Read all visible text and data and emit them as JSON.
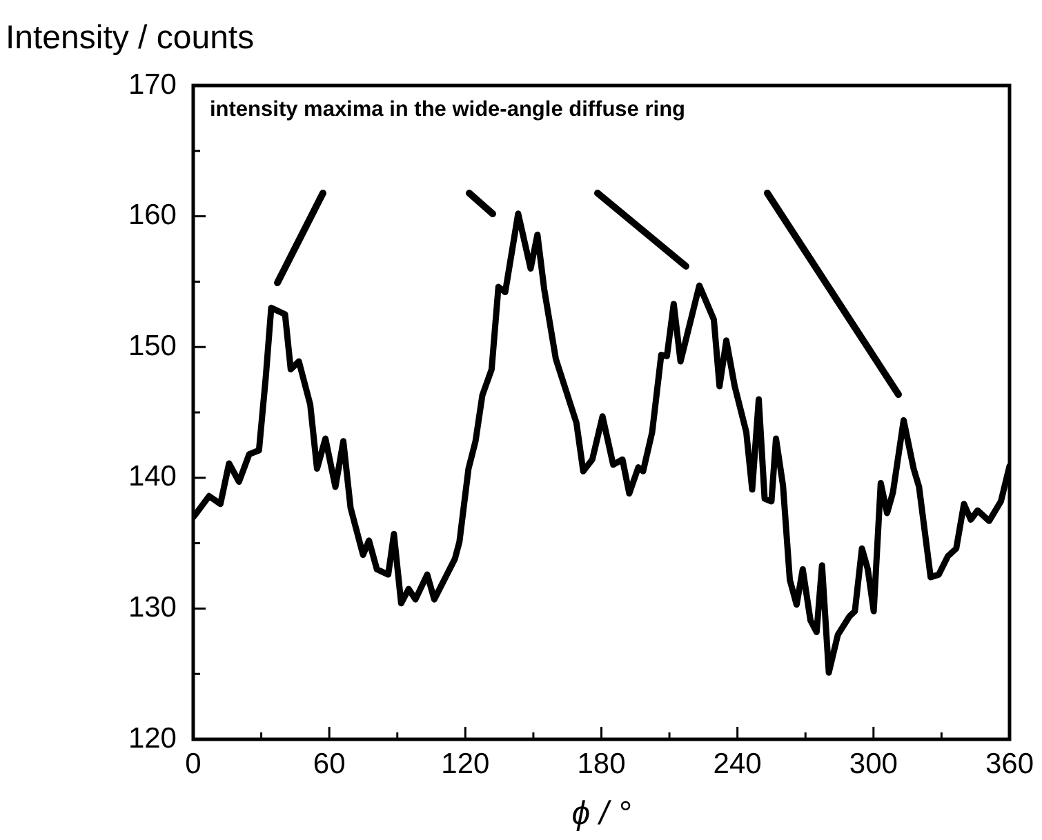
{
  "chart_data": {
    "type": "line",
    "xlabel": "ϕ / °",
    "ylabel": "Intensity / counts",
    "annotations": [
      "intensity maxima in the wide-angle diffuse ring"
    ],
    "xlim": [
      0,
      360
    ],
    "xticks": [
      0,
      {
        "value": 30,
        "label": null
      },
      60,
      {
        "value": 90,
        "label": null
      },
      120,
      {
        "value": 150,
        "label": null
      },
      180,
      {
        "value": 210,
        "label": null
      },
      240,
      {
        "value": 270,
        "label": null
      },
      300,
      {
        "value": 330,
        "label": null
      },
      360
    ],
    "ylim": [
      120,
      170
    ],
    "yticks": [
      120,
      {
        "value": 125,
        "label": null
      },
      130,
      {
        "value": 135,
        "label": null
      },
      140,
      {
        "value": 145,
        "label": null
      },
      150,
      {
        "value": 155,
        "label": null
      },
      160,
      {
        "value": 165,
        "label": null
      },
      170
    ],
    "grid": false,
    "legend": false,
    "marker": "none",
    "line_style": "solid",
    "series": [
      {
        "color": "#000000",
        "x": [
          0,
          1,
          7,
          12,
          15.8,
          20.2,
          24.7,
          29,
          32,
          34.4,
          40.5,
          43,
          46.6,
          51.6,
          54.6,
          58.3,
          62.7,
          66.2,
          69.4,
          74.9,
          77.5,
          81,
          86,
          88.5,
          91.7,
          95,
          98,
          103.2,
          106.3,
          115.4,
          117.4,
          121.4,
          124.5,
          127.5,
          131.6,
          134.6,
          137.6,
          143.3,
          148.8,
          151.8,
          154.8,
          159.9,
          169,
          172,
          176,
          180.5,
          185.2,
          189.3,
          192.3,
          196.3,
          198.4,
          202.4,
          206.4,
          208.9,
          211.9,
          214.9,
          223.2,
          229.6,
          232.1,
          235.1,
          238.8,
          243.9,
          246.5,
          249.4,
          252,
          255,
          257,
          260.1,
          263.1,
          266.1,
          268.8,
          272.2,
          274.9,
          277.3,
          280.3,
          284.3,
          289.4,
          291.8,
          294.9,
          297.5,
          300.1,
          303.2,
          306,
          308.6,
          313.3,
          317.7,
          320.1,
          325.2,
          328.8,
          332.8,
          336.5,
          339.9,
          342.9,
          345.9,
          351,
          356.2,
          360
        ],
        "values": [
          137,
          137.2,
          138.6,
          138,
          141.1,
          139.7,
          141.8,
          142.1,
          147.7,
          153,
          152.5,
          148.3,
          148.9,
          145.6,
          140.7,
          143,
          139.3,
          142.8,
          137.7,
          134.1,
          135.2,
          133,
          132.6,
          135.7,
          130.4,
          131.5,
          130.7,
          132.6,
          130.7,
          133.8,
          135.1,
          140.7,
          142.8,
          146.3,
          148.3,
          154.6,
          154.2,
          160.2,
          156,
          158.6,
          154.4,
          149.1,
          144.2,
          140.5,
          141.4,
          144.7,
          141,
          141.4,
          138.8,
          140.8,
          140.5,
          143.5,
          149.4,
          149.3,
          153.3,
          148.9,
          154.7,
          152.1,
          147,
          150.5,
          147,
          143.5,
          139.1,
          146,
          138.4,
          138.2,
          143,
          139.4,
          132.2,
          130.3,
          133,
          129.1,
          128.2,
          133.3,
          125.1,
          128,
          129.4,
          129.8,
          134.6,
          133,
          129.8,
          139.6,
          137.3,
          138.9,
          144.4,
          140.7,
          139.3,
          132.4,
          132.6,
          134,
          134.6,
          138,
          136.8,
          137.5,
          136.7,
          138.2,
          140.9
        ]
      }
    ]
  }
}
